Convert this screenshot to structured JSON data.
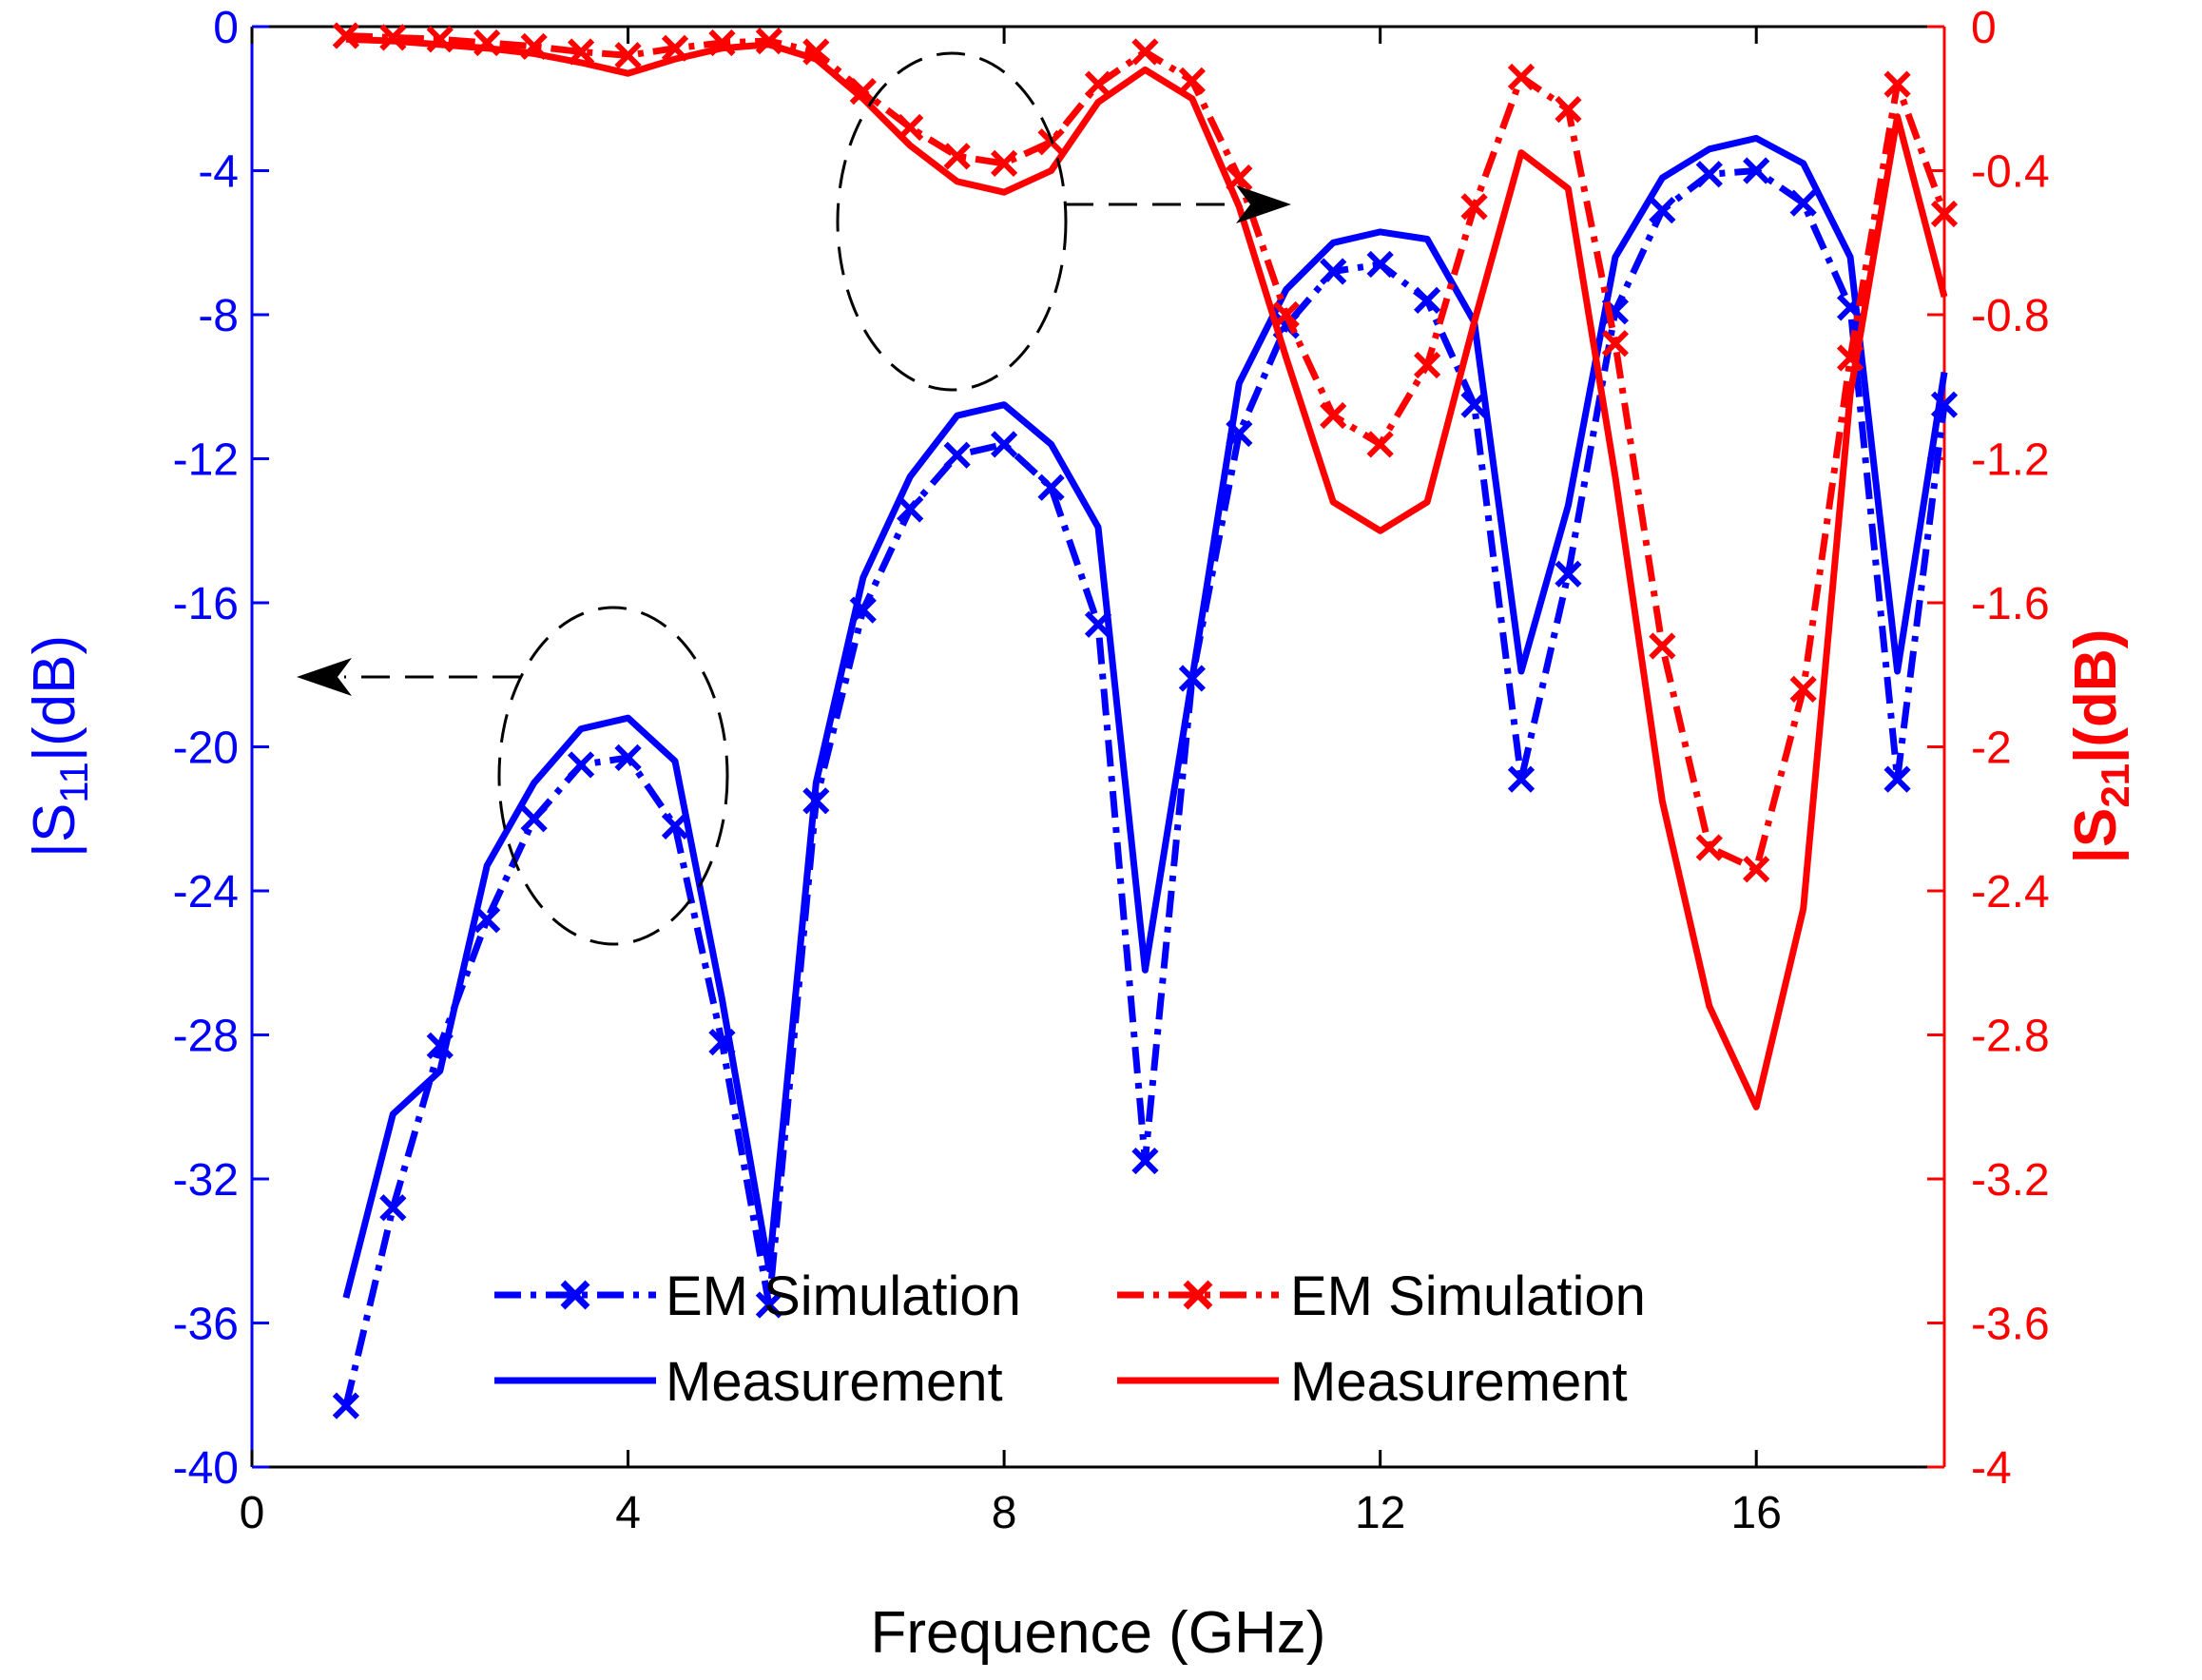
{
  "chart_data": {
    "type": "line",
    "xlabel": "Frequence (GHz)",
    "ylabel_left": {
      "prefix": "|S",
      "sub": "11",
      "suffix": "|(dB)"
    },
    "ylabel_right": {
      "prefix": "|S",
      "sub": "21",
      "suffix": "|(dB)"
    },
    "xlim": [
      0,
      18
    ],
    "ylim_left": [
      -40,
      0
    ],
    "ylim_right": [
      -4,
      0
    ],
    "xticks": [
      0,
      4,
      8,
      12,
      16
    ],
    "xtick_labels": [
      "0",
      "4",
      "8",
      "12",
      "16"
    ],
    "yticks_left": [
      0,
      -4,
      -8,
      -12,
      -16,
      -20,
      -24,
      -28,
      -32,
      -36,
      -40
    ],
    "ytick_labels_left": [
      "0",
      "-4",
      "-8",
      "-12",
      "-16",
      "-20",
      "-24",
      "-28",
      "-32",
      "-36",
      "-40"
    ],
    "yticks_right": [
      0,
      -0.4,
      -0.8,
      -1.2,
      -1.6,
      -2,
      -2.4,
      -2.8,
      -3.2,
      -3.6,
      -4
    ],
    "ytick_labels_right": [
      "0",
      "-0.4",
      "-0.8",
      "-1.2",
      "-1.6",
      "-2",
      "-2.4",
      "-2.8",
      "-3.2",
      "-3.6",
      "-4"
    ],
    "colors": {
      "s11": "#0000ff",
      "s21": "#ff0000",
      "axes": "#000000",
      "annotation": "#000000"
    },
    "legend": {
      "s11": [
        {
          "label": "EM Simulation",
          "style": "dashdot-x"
        },
        {
          "label": "Measurement",
          "style": "solid"
        }
      ],
      "s21": [
        {
          "label": "EM Simulation",
          "style": "dashdot-x"
        },
        {
          "label": "Measurement",
          "style": "solid"
        }
      ]
    },
    "annotations": [
      {
        "type": "ellipse-arrow",
        "target_axis": "left",
        "direction": "left"
      },
      {
        "type": "ellipse-arrow",
        "target_axis": "right",
        "direction": "right"
      }
    ],
    "series": [
      {
        "name": "S11 EM Simulation",
        "axis": "left",
        "color": "#0000ff",
        "style": "dashdot-x",
        "x": [
          1,
          1.5,
          2,
          2.5,
          3,
          3.5,
          4,
          4.5,
          5,
          5.5,
          6,
          6.5,
          7,
          7.5,
          8,
          8.5,
          9,
          9.5,
          10,
          10.5,
          11,
          11.5,
          12,
          12.5,
          13,
          13.5,
          14,
          14.5,
          15,
          15.5,
          16,
          16.5,
          17,
          17.5,
          18
        ],
        "values": [
          -38.3,
          -32.8,
          -28.3,
          -24.8,
          -22,
          -20.5,
          -20.3,
          -22.2,
          -28.2,
          -35.5,
          -21.5,
          -16.2,
          -13.4,
          -11.9,
          -11.6,
          -12.8,
          -16.6,
          -31.5,
          -18.1,
          -11.3,
          -8.3,
          -6.8,
          -6.6,
          -7.6,
          -10.5,
          -20.9,
          -15.2,
          -7.9,
          -5.1,
          -4.1,
          -4,
          -4.9,
          -7.8,
          -20.9,
          -10.5
        ]
      },
      {
        "name": "S11 Measurement",
        "axis": "left",
        "color": "#0000ff",
        "style": "solid",
        "x": [
          1,
          1.5,
          2,
          2.5,
          3,
          3.5,
          4,
          4.5,
          5,
          5.5,
          6,
          6.5,
          7,
          7.5,
          8,
          8.5,
          9,
          9.5,
          10,
          10.5,
          11,
          11.5,
          12,
          12.5,
          13,
          13.5,
          14,
          14.5,
          15,
          15.5,
          16,
          16.5,
          17,
          17.5,
          18
        ],
        "values": [
          -35.3,
          -30.2,
          -29,
          -23.3,
          -21,
          -19.5,
          -19.2,
          -20.4,
          -27,
          -34.5,
          -21,
          -15.3,
          -12.5,
          -10.8,
          -10.5,
          -11.6,
          -13.9,
          -26.2,
          -18.1,
          -9.9,
          -7.3,
          -6,
          -5.7,
          -5.9,
          -8.2,
          -17.9,
          -13.3,
          -6.4,
          -4.2,
          -3.4,
          -3.1,
          -3.8,
          -6.4,
          -17.9,
          -9.6
        ]
      },
      {
        "name": "S21 EM Simulation",
        "axis": "right",
        "color": "#ff0000",
        "style": "dashdot-x",
        "x": [
          1,
          1.5,
          2,
          2.5,
          3,
          3.5,
          4,
          4.5,
          5,
          5.5,
          6,
          6.5,
          7,
          7.5,
          8,
          8.5,
          9,
          9.5,
          10,
          10.5,
          11,
          11.5,
          12,
          12.5,
          13,
          13.5,
          14,
          14.5,
          15,
          15.5,
          16,
          16.5,
          17,
          17.5,
          18
        ],
        "values": [
          -0.025,
          -0.03,
          -0.035,
          -0.045,
          -0.055,
          -0.07,
          -0.08,
          -0.06,
          -0.045,
          -0.04,
          -0.07,
          -0.18,
          -0.28,
          -0.36,
          -0.38,
          -0.32,
          -0.16,
          -0.07,
          -0.15,
          -0.42,
          -0.8,
          -1.08,
          -1.16,
          -0.94,
          -0.5,
          -0.14,
          -0.23,
          -0.88,
          -1.72,
          -2.28,
          -2.34,
          -1.84,
          -0.92,
          -0.16,
          -0.52
        ]
      },
      {
        "name": "S21 Measurement",
        "axis": "right",
        "color": "#ff0000",
        "style": "solid",
        "x": [
          1,
          1.5,
          2,
          2.5,
          3,
          3.5,
          4,
          4.5,
          5,
          5.5,
          6,
          6.5,
          7,
          7.5,
          8,
          8.5,
          9,
          9.5,
          10,
          10.5,
          11,
          11.5,
          12,
          12.5,
          13,
          13.5,
          14,
          14.5,
          15,
          15.5,
          16,
          16.5,
          17,
          17.5,
          18
        ],
        "values": [
          -0.035,
          -0.04,
          -0.05,
          -0.06,
          -0.075,
          -0.1,
          -0.13,
          -0.09,
          -0.06,
          -0.05,
          -0.09,
          -0.2,
          -0.33,
          -0.43,
          -0.46,
          -0.4,
          -0.21,
          -0.12,
          -0.2,
          -0.5,
          -0.92,
          -1.32,
          -1.4,
          -1.32,
          -0.82,
          -0.35,
          -0.45,
          -1.25,
          -2.15,
          -2.72,
          -3,
          -2.45,
          -1.02,
          -0.25,
          -0.75
        ]
      }
    ]
  }
}
